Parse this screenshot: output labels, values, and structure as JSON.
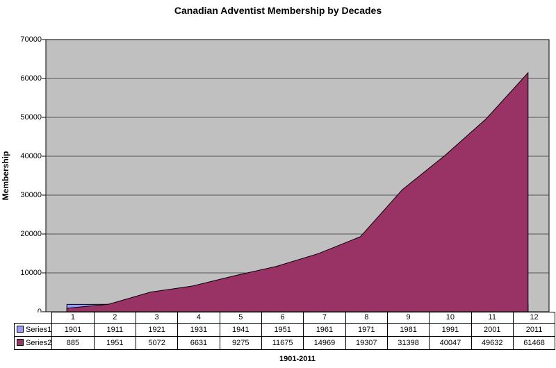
{
  "title": "Canadian Adventist Membership by Decades",
  "y_axis": {
    "label": "Membership",
    "tick_labels": [
      "70000",
      "60000",
      "50000",
      "40000",
      "30000",
      "20000",
      "10000",
      "0"
    ]
  },
  "x_axis": {
    "title": "1901-2011",
    "categories": [
      "1",
      "2",
      "3",
      "4",
      "5",
      "6",
      "7",
      "8",
      "9",
      "10",
      "11",
      "12"
    ]
  },
  "legend": [
    {
      "name": "Series1",
      "color": "#9999FF"
    },
    {
      "name": "Series2",
      "color": "#993366"
    }
  ],
  "colors": {
    "plot_background": "#C0C0C0",
    "gridline": "#555555",
    "axis": "#000000",
    "series1_fill": "#9999FF",
    "series2_fill": "#993366"
  },
  "chart_data": {
    "type": "area",
    "title": "Canadian Adventist Membership by Decades",
    "xlabel": "1901-2011",
    "ylabel": "Membership",
    "ylim": [
      0,
      70000
    ],
    "y_tick_step": 10000,
    "grid": true,
    "legend_position": "data-table-left",
    "categories": [
      "1",
      "2",
      "3",
      "4",
      "5",
      "6",
      "7",
      "8",
      "9",
      "10",
      "11",
      "12"
    ],
    "series": [
      {
        "name": "Series1",
        "color": "#9999FF",
        "values": [
          1901,
          1911,
          1921,
          1931,
          1941,
          1951,
          1961,
          1971,
          1981,
          1991,
          2001,
          2011
        ]
      },
      {
        "name": "Series2",
        "color": "#993366",
        "values": [
          885,
          1951,
          5072,
          6631,
          9275,
          11675,
          14969,
          19307,
          31398,
          40047,
          49632,
          61468
        ]
      }
    ]
  }
}
